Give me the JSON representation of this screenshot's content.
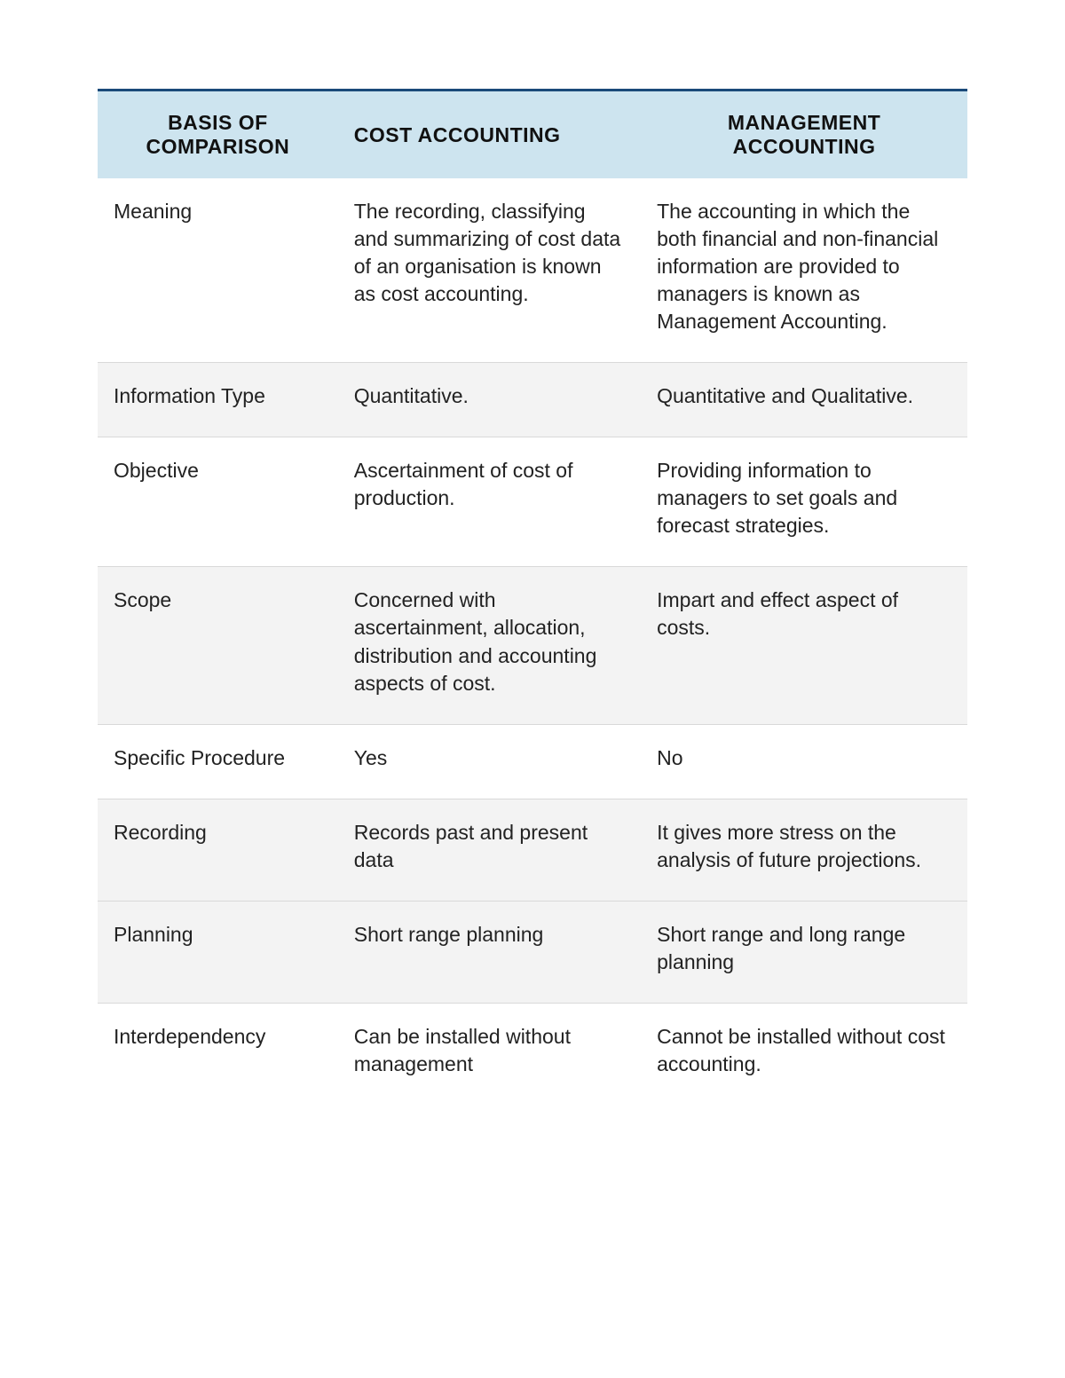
{
  "table": {
    "type": "table",
    "header_bg": "#cde4ef",
    "header_top_border": "#1a4a7a",
    "row_alt_bg": "#f3f3f3",
    "row_plain_bg": "#ffffff",
    "row_border": "#d9d9d9",
    "text_color": "#222222",
    "header_font_size_pt": 17,
    "body_font_size_pt": 17,
    "columns": [
      "BASIS OF COMPARISON",
      "COST ACCOUNTING",
      "MANAGEMENT ACCOUNTING"
    ],
    "rows": [
      {
        "basis": "Meaning",
        "cost": "The recording, classifying and summarizing of cost data of an organisation is known as cost accounting.",
        "mgmt": "The accounting in which the both financial and non-financial information are provided to managers is known as Management Accounting."
      },
      {
        "basis": "Information Type",
        "cost": "Quantitative.",
        "mgmt": "Quantitative and Qualitative."
      },
      {
        "basis": "Objective",
        "cost": "Ascertainment of cost of production.",
        "mgmt": "Providing information to managers to set goals and forecast strategies."
      },
      {
        "basis": "Scope",
        "cost": "Concerned with ascertainment, allocation, distribution and accounting aspects of cost.",
        "mgmt": "Impart and effect aspect of costs."
      },
      {
        "basis": "Specific Procedure",
        "cost": "Yes",
        "mgmt": "No"
      },
      {
        "basis": "Recording",
        "cost": "Records past and present data",
        "mgmt": "It gives more stress on the analysis of future projections."
      },
      {
        "basis": "Planning",
        "cost": "Short range planning",
        "mgmt": "Short range and long range planning"
      },
      {
        "basis": "Interdependency",
        "cost": "Can be installed without management",
        "mgmt": "Cannot be installed without cost accounting."
      }
    ]
  }
}
